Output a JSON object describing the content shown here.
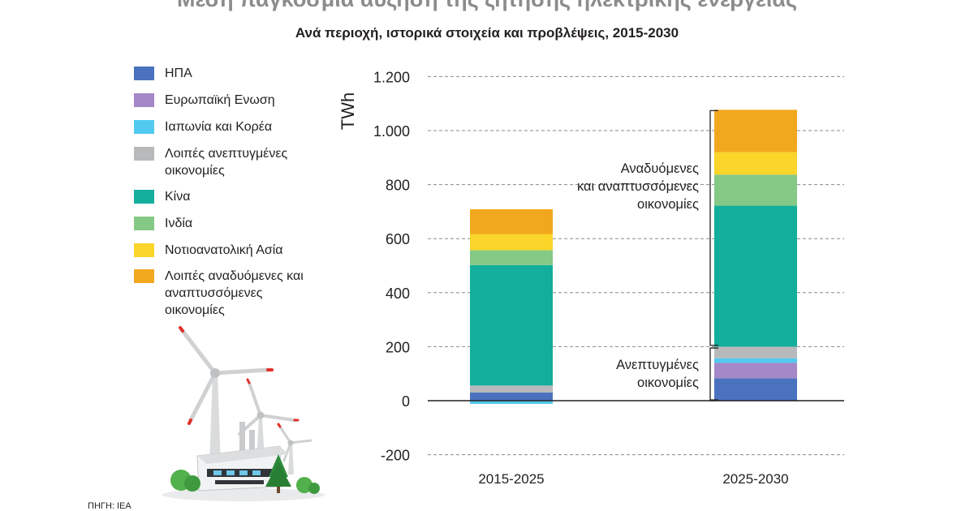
{
  "title": "Μέση παγκόσμια αύξηση της ζήτησης ηλεκτρικής ενέργειας",
  "subtitle": "Ανά περιοχή, ιστορικά στοιχεία και προβλέψεις, 2015-2030",
  "source": "ΠΗΓΗ: IEA",
  "legend": [
    {
      "label": "ΗΠΑ",
      "color": "#4a72bf"
    },
    {
      "label": "Ευρωπαϊκή Ενωση",
      "color": "#a488c8"
    },
    {
      "label": "Ιαπωνία και Κορέα",
      "color": "#52c9f0"
    },
    {
      "label": "Λοιπές ανεπτυγμένες οικονομίες",
      "color": "#b8b9bb"
    },
    {
      "label": "Κίνα",
      "color": "#13ae9c"
    },
    {
      "label": "Ινδία",
      "color": "#85c986"
    },
    {
      "label": "Νοτιοανατολική Ασία",
      "color": "#fbd529"
    },
    {
      "label": "Λοιπές αναδυόμενες και αναπτυσσόμενες οικονομίες",
      "color": "#f2a81e"
    }
  ],
  "annotations": {
    "emerging": "Αναδυόμενες και αναπτυσσόμενες οικονομίες",
    "advanced": "Ανεπτυγμένες οικονομίες"
  },
  "chart_data": {
    "type": "bar",
    "stacked": true,
    "title": "Μέση παγκόσμια αύξηση της ζήτησης ηλεκτρικής ενέργειας",
    "subtitle": "Ανά περιοχή, ιστορικά στοιχεία και προβλέψεις, 2015-2030",
    "ylabel": "TWh",
    "xlabel": "",
    "ylim": [
      -200,
      1200
    ],
    "yticks": [
      -200,
      0,
      200,
      400,
      600,
      800,
      1000,
      1200
    ],
    "ytick_labels": [
      "-200",
      "0",
      "200",
      "400",
      "600",
      "800",
      "1.000",
      "1.200"
    ],
    "grid": true,
    "legend_position": "left",
    "categories": [
      "2015-2025",
      "2025-2030"
    ],
    "series": [
      {
        "name": "ΗΠΑ",
        "values": [
          30,
          83
        ]
      },
      {
        "name": "Ευρωπαϊκή Ενωση",
        "values": [
          -2,
          57
        ]
      },
      {
        "name": "Ιαπωνία και Κορέα",
        "values": [
          -10,
          17
        ]
      },
      {
        "name": "Λοιπές ανεπτυγμένες οικονομίες",
        "values": [
          26,
          43
        ]
      },
      {
        "name": "Κίνα",
        "values": [
          446,
          522
        ]
      },
      {
        "name": "Ινδία",
        "values": [
          55,
          115
        ]
      },
      {
        "name": "Νοτιοανατολική Ασία",
        "values": [
          60,
          83
        ]
      },
      {
        "name": "Λοιπές αναδυόμενες και αναπτυσσόμενες οικονομίες",
        "values": [
          92,
          157
        ]
      }
    ]
  }
}
